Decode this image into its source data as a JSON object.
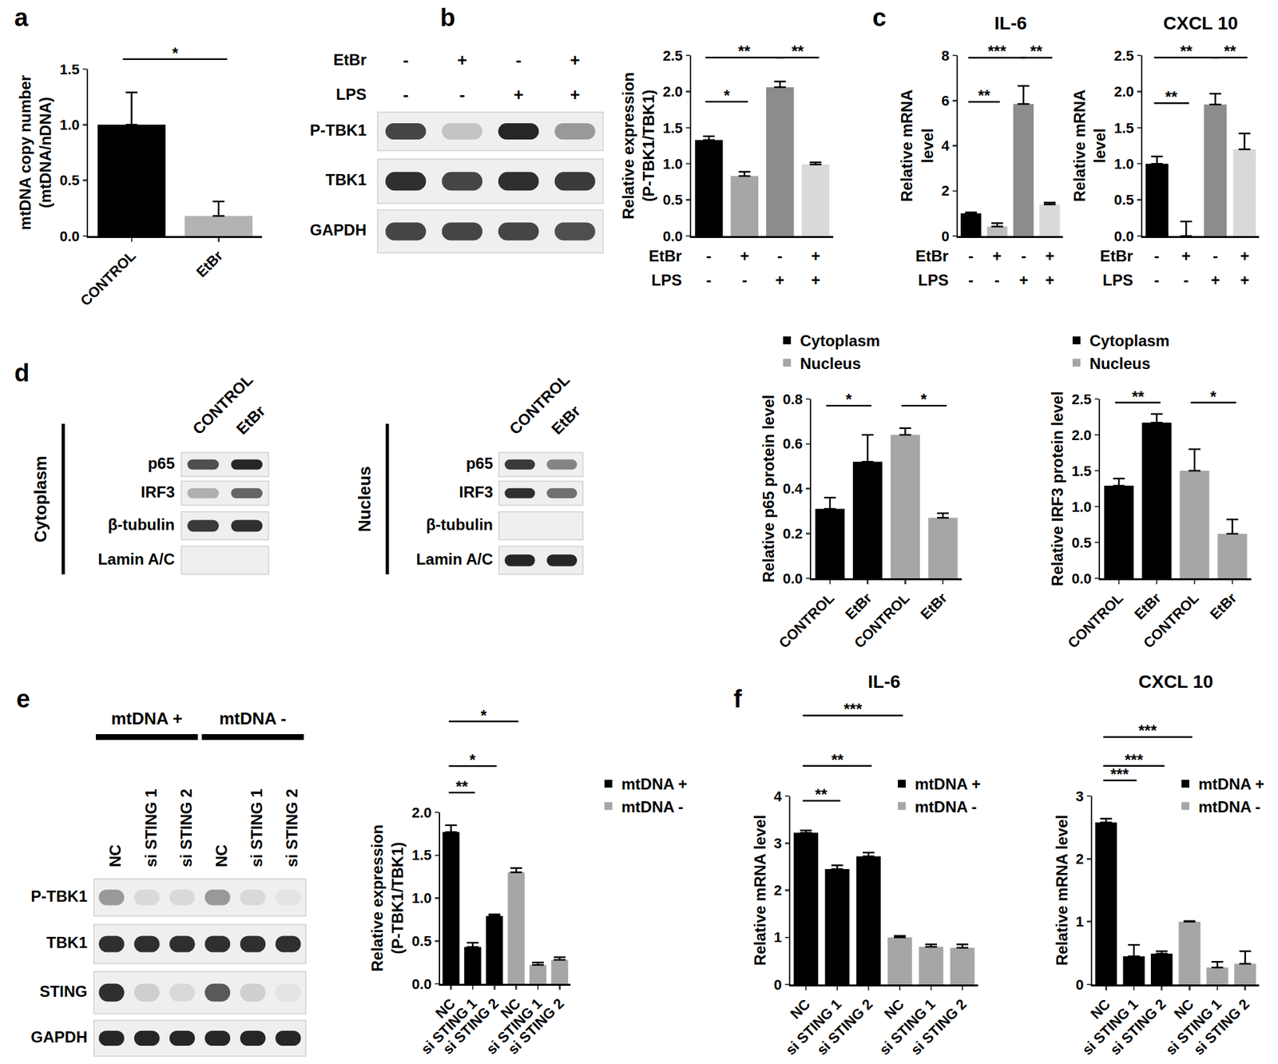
{
  "panel_labels": [
    "a",
    "b",
    "c",
    "d",
    "e",
    "f"
  ],
  "chart_data": [
    {
      "type": "bar",
      "y_label": "mtDNA copy number\n(mtDNA/nDNA)",
      "categories": [
        "CONTROL",
        "EtBr"
      ],
      "series": [
        {
          "values": [
            1.0,
            0.18
          ],
          "errors": [
            0.29,
            0.13
          ],
          "colors": [
            "#000000",
            "#b3b3b3"
          ]
        }
      ],
      "ylim": [
        0,
        1.5
      ],
      "yticks": [
        {
          "value": 0,
          "label": "0.0"
        },
        {
          "value": 0.5,
          "label": "0.5"
        },
        {
          "value": 1,
          "label": "1.0"
        },
        {
          "value": 1.5,
          "label": "1.5"
        }
      ],
      "grid": false,
      "significance": [
        {
          "text": "*",
          "from": 0,
          "to": 1,
          "y": 1.59
        }
      ]
    },
    {
      "type": "bar",
      "y_label": "Relative expression\n(P-TBK1/TBK1)",
      "categories": [
        null,
        null,
        null,
        null
      ],
      "conditions": [
        {
          "name": "EtBr",
          "labels": [
            "-",
            "+",
            "-",
            "+"
          ]
        },
        {
          "name": "LPS",
          "labels": [
            "-",
            "-",
            "+",
            "+"
          ]
        }
      ],
      "series": [
        {
          "values": [
            1.33,
            0.83,
            2.06,
            0.99
          ],
          "errors": [
            0.05,
            0.06,
            0.08,
            0.03
          ],
          "colors": [
            "#000000",
            "#a6a6a6",
            "#8c8c8c",
            "#d9d9d9"
          ]
        }
      ],
      "ylim": [
        0,
        2.5
      ],
      "yticks": [
        {
          "value": 0,
          "label": "0.0"
        },
        {
          "value": 0.5,
          "label": "0.5"
        },
        {
          "value": 1,
          "label": "1.0"
        },
        {
          "value": 1.5,
          "label": "1.5"
        },
        {
          "value": 2,
          "label": "2.0"
        },
        {
          "value": 2.5,
          "label": "2.5"
        }
      ],
      "grid": false,
      "significance": [
        {
          "text": "*",
          "from": 0,
          "to": 1,
          "y": 1.86
        },
        {
          "text": "**",
          "from": 0,
          "to": 2,
          "y": 2.47
        },
        {
          "text": "**",
          "from": 2,
          "to": 3,
          "y": 2.47
        }
      ]
    },
    {
      "type": "bar",
      "title": "IL-6",
      "y_label": "Relative mRNA\nlevel",
      "categories": [
        null,
        null,
        null,
        null
      ],
      "conditions": [
        {
          "name": "EtBr",
          "labels": [
            "-",
            "+",
            "-",
            "+"
          ]
        },
        {
          "name": "LPS",
          "labels": [
            "-",
            "-",
            "+",
            "+"
          ]
        }
      ],
      "series": [
        {
          "values": [
            1.0,
            0.42,
            5.85,
            1.4
          ],
          "errors": [
            0.05,
            0.15,
            0.8,
            0.08
          ],
          "colors": [
            "#000000",
            "#bdbdbd",
            "#8c8c8c",
            "#d9d9d9"
          ]
        }
      ],
      "ylim": [
        0,
        8
      ],
      "yticks": [
        0,
        2,
        4,
        6,
        8
      ],
      "grid": false,
      "significance": [
        {
          "text": "**",
          "from": 0,
          "to": 1,
          "y": 5.94
        },
        {
          "text": "***",
          "from": 0,
          "to": 2,
          "y": 7.9
        },
        {
          "text": "**",
          "from": 2,
          "to": 3,
          "y": 7.9
        }
      ]
    },
    {
      "type": "bar",
      "title": "CXCL 10",
      "y_label": "Relative mRNA\nlevel",
      "categories": [
        null,
        null,
        null,
        null
      ],
      "conditions": [
        {
          "name": "EtBr",
          "labels": [
            "-",
            "+",
            "-",
            "+"
          ]
        },
        {
          "name": "LPS",
          "labels": [
            "-",
            "-",
            "+",
            "+"
          ]
        }
      ],
      "series": [
        {
          "values": [
            1.0,
            0.0,
            1.82,
            1.2
          ],
          "errors": [
            0.1,
            0.2,
            0.15,
            0.22
          ],
          "colors": [
            "#000000",
            "#bdbdbd",
            "#8c8c8c",
            "#d9d9d9"
          ]
        }
      ],
      "ylim": [
        0,
        2.5
      ],
      "yticks": [
        {
          "value": 0,
          "label": "0.0"
        },
        {
          "value": 0.5,
          "label": "0.5"
        },
        {
          "value": 1,
          "label": "1.0"
        },
        {
          "value": 1.5,
          "label": "1.5"
        },
        {
          "value": 2,
          "label": "2.0"
        },
        {
          "value": 2.5,
          "label": "2.5"
        }
      ],
      "grid": false,
      "significance": [
        {
          "text": "**",
          "from": 0,
          "to": 1,
          "y": 1.84
        },
        {
          "text": "**",
          "from": 0,
          "to": 2,
          "y": 2.47
        },
        {
          "text": "**",
          "from": 2,
          "to": 3,
          "y": 2.47
        }
      ]
    },
    {
      "type": "bar",
      "y_label": "Relative p65 protein level",
      "categories": [
        "CONTROL",
        "EtBr",
        "CONTROL",
        "EtBr"
      ],
      "series": [
        {
          "name": "Cytoplasm",
          "color": "#000000",
          "values": [
            0.31,
            0.52,
            null,
            null
          ],
          "errors": [
            0.05,
            0.12,
            null,
            null
          ]
        },
        {
          "name": "Nucleus",
          "color": "#a6a6a6",
          "values": [
            null,
            null,
            0.64,
            0.27
          ],
          "errors": [
            null,
            null,
            0.03,
            0.02
          ]
        }
      ],
      "ylim": [
        0,
        0.8
      ],
      "yticks": [
        {
          "value": 0,
          "label": "0.0"
        },
        {
          "value": 0.2,
          "label": "0.2"
        },
        {
          "value": 0.4,
          "label": "0.4"
        },
        {
          "value": 0.6,
          "label": "0.6"
        },
        {
          "value": 0.8,
          "label": "0.8"
        }
      ],
      "grid": false,
      "legend": "top left",
      "significance": [
        {
          "text": "*",
          "from": 0,
          "to": 1,
          "y": 0.77
        },
        {
          "text": "*",
          "from": 2,
          "to": 3,
          "y": 0.77
        }
      ]
    },
    {
      "type": "bar",
      "y_label": "Relative IRF3 protein level",
      "categories": [
        "CONTROL",
        "EtBr",
        "CONTROL",
        "EtBr"
      ],
      "series": [
        {
          "name": "Cytoplasm",
          "color": "#000000",
          "values": [
            1.29,
            2.17,
            null,
            null
          ],
          "errors": [
            0.1,
            0.12,
            null,
            null
          ]
        },
        {
          "name": "Nucleus",
          "color": "#a6a6a6",
          "values": [
            null,
            null,
            1.5,
            0.62
          ],
          "errors": [
            null,
            null,
            0.3,
            0.2
          ]
        }
      ],
      "ylim": [
        0,
        2.5
      ],
      "yticks": [
        {
          "value": 0,
          "label": "0.0"
        },
        {
          "value": 0.5,
          "label": "0.5"
        },
        {
          "value": 1,
          "label": "1.0"
        },
        {
          "value": 1.5,
          "label": "1.5"
        },
        {
          "value": 2,
          "label": "2.0"
        },
        {
          "value": 2.5,
          "label": "2.5"
        }
      ],
      "grid": false,
      "legend": "top left",
      "significance": [
        {
          "text": "**",
          "from": 0,
          "to": 1,
          "y": 2.45
        },
        {
          "text": "*",
          "from": 2,
          "to": 3,
          "y": 2.45
        }
      ]
    },
    {
      "type": "bar",
      "y_label": "Relative expression\n(P-TBK1/TBK1)",
      "categories": [
        "NC",
        "si STING 1",
        "si STING 2",
        "NC",
        "si STING 1",
        "si STING 2"
      ],
      "series": [
        {
          "name": "mtDNA +",
          "color": "#000000",
          "values": [
            1.77,
            0.43,
            0.79,
            null,
            null,
            null
          ],
          "errors": [
            0.08,
            0.05,
            0.02,
            null,
            null,
            null
          ]
        },
        {
          "name": "mtDNA -",
          "color": "#a6a6a6",
          "values": [
            null,
            null,
            null,
            1.3,
            0.22,
            0.28
          ],
          "errors": [
            null,
            null,
            null,
            0.05,
            0.03,
            0.03
          ]
        }
      ],
      "ylim": [
        0,
        2
      ],
      "yticks": [
        {
          "value": 0,
          "label": "0.0"
        },
        {
          "value": 0.5,
          "label": "0.5"
        },
        {
          "value": 1,
          "label": "1.0"
        },
        {
          "value": 1.5,
          "label": "1.5"
        },
        {
          "value": 2,
          "label": "2.0"
        }
      ],
      "grid": false,
      "legend": "top right",
      "significance": [
        {
          "text": "**",
          "from": 0,
          "to": 1,
          "y": 2.23
        },
        {
          "text": "*",
          "from": 0,
          "to": 2,
          "y": 2.54
        },
        {
          "text": "*",
          "from": 0,
          "to": 3,
          "y": 3.06
        }
      ]
    },
    {
      "type": "bar",
      "title": "IL-6",
      "y_label": "Relative mRNA level",
      "categories": [
        "NC",
        "si STING 1",
        "si STING 2",
        "NC",
        "si STING 1",
        "si STING 2"
      ],
      "series": [
        {
          "name": "mtDNA +",
          "color": "#000000",
          "values": [
            3.22,
            2.45,
            2.72,
            null,
            null,
            null
          ],
          "errors": [
            0.05,
            0.08,
            0.08,
            null,
            null,
            null
          ]
        },
        {
          "name": "mtDNA -",
          "color": "#a6a6a6",
          "values": [
            null,
            null,
            null,
            1.0,
            0.8,
            0.78
          ],
          "errors": [
            null,
            null,
            null,
            0.03,
            0.05,
            0.07
          ]
        }
      ],
      "ylim": [
        0,
        4
      ],
      "yticks": [
        0,
        1,
        2,
        3,
        4
      ],
      "grid": false,
      "legend": "top right",
      "significance": [
        {
          "text": "**",
          "from": 0,
          "to": 1,
          "y": 3.9
        },
        {
          "text": "**",
          "from": 0,
          "to": 2,
          "y": 4.64
        },
        {
          "text": "***",
          "from": 0,
          "to": 3,
          "y": 5.71
        }
      ]
    },
    {
      "type": "bar",
      "title": "CXCL 10",
      "y_label": "Relative mRNA level",
      "categories": [
        "NC",
        "si STING 1",
        "si STING 2",
        "NC",
        "si STING 1",
        "si STING 2"
      ],
      "series": [
        {
          "name": "mtDNA +",
          "color": "#000000",
          "values": [
            2.58,
            0.45,
            0.49,
            null,
            null,
            null
          ],
          "errors": [
            0.06,
            0.18,
            0.04,
            null,
            null,
            null
          ]
        },
        {
          "name": "mtDNA -",
          "color": "#a6a6a6",
          "values": [
            null,
            null,
            null,
            1.0,
            0.27,
            0.33
          ],
          "errors": [
            null,
            null,
            null,
            0.01,
            0.09,
            0.2
          ]
        }
      ],
      "ylim": [
        0,
        3
      ],
      "yticks": [
        0,
        1,
        2,
        3
      ],
      "grid": false,
      "legend": "top right",
      "significance": [
        {
          "text": "***",
          "from": 0,
          "to": 1,
          "y": 3.25
        },
        {
          "text": "***",
          "from": 0,
          "to": 2,
          "y": 3.48
        },
        {
          "text": "***",
          "from": 0,
          "to": 3,
          "y": 3.94
        }
      ]
    }
  ],
  "blots": [
    {
      "header": [
        {
          "name": "EtBr",
          "labels": [
            "-",
            "+",
            "-",
            "+"
          ]
        },
        {
          "name": "LPS",
          "labels": [
            "-",
            "-",
            "+",
            "+"
          ]
        }
      ],
      "rows": [
        "P-TBK1",
        "TBK1",
        "GAPDH"
      ],
      "intensity": [
        [
          0.8,
          0.2,
          0.95,
          0.4
        ],
        [
          0.9,
          0.8,
          0.9,
          0.85
        ],
        [
          0.8,
          0.8,
          0.8,
          0.75
        ]
      ]
    },
    {
      "group": "Cytoplasm",
      "columns": [
        "CONTROL",
        "EtBr"
      ],
      "rows": [
        "p65",
        "IRF3",
        "β-tubulin",
        "Lamin A/C"
      ],
      "intensity": [
        [
          0.75,
          0.95
        ],
        [
          0.3,
          0.65
        ],
        [
          0.85,
          0.9
        ],
        [
          0,
          0
        ]
      ]
    },
    {
      "group": "Nucleus",
      "columns": [
        "CONTROL",
        "EtBr"
      ],
      "rows": [
        "p65",
        "IRF3",
        "β-tubulin",
        "Lamin A/C"
      ],
      "intensity": [
        [
          0.85,
          0.5
        ],
        [
          0.9,
          0.6
        ],
        [
          0,
          0
        ],
        [
          0.95,
          0.95
        ]
      ]
    },
    {
      "groups": [
        {
          "name": "mtDNA +",
          "columns": [
            "NC",
            "si STING 1",
            "si STING 2"
          ]
        },
        {
          "name": "mtDNA -",
          "columns": [
            "NC",
            "si STING 1",
            "si STING 2"
          ]
        }
      ],
      "rows": [
        "P-TBK1",
        "TBK1",
        "STING",
        "GAPDH"
      ],
      "intensity": [
        [
          0.4,
          0.1,
          0.1,
          0.4,
          0.1,
          0.05
        ],
        [
          0.9,
          0.9,
          0.9,
          0.9,
          0.9,
          0.9
        ],
        [
          0.9,
          0.15,
          0.1,
          0.7,
          0.15,
          0.05
        ],
        [
          0.95,
          0.95,
          0.95,
          0.95,
          0.95,
          0.95
        ]
      ]
    }
  ]
}
